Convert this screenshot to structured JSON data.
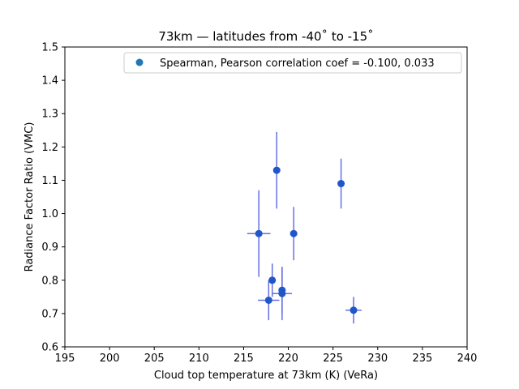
{
  "chart_data": {
    "type": "scatter",
    "title": "73km — latitudes from -40˚ to -15˚",
    "xlabel": "Cloud top temperature at 73km (K) (VeRa)",
    "ylabel": "Radiance Factor Ratio (VMC)",
    "xlim": [
      195,
      240
    ],
    "ylim": [
      0.6,
      1.5
    ],
    "xticks": [
      "195",
      "200",
      "205",
      "210",
      "215",
      "220",
      "225",
      "230",
      "235",
      "240"
    ],
    "yticks": [
      "0.6",
      "0.7",
      "0.8",
      "0.9",
      "1.0",
      "1.1",
      "1.2",
      "1.3",
      "1.4",
      "1.5"
    ],
    "grid": false,
    "legend": {
      "position": "top-right",
      "label": "Spearman, Pearson correlation coef = -0.100,  0.033"
    },
    "colors": {
      "marker": "#1f57c8",
      "errorbar": "#6670e0",
      "legend_marker": "#1f77b4"
    },
    "points": [
      {
        "x": 216.7,
        "y": 0.94,
        "xerr": 1.3,
        "yerr": 0.13
      },
      {
        "x": 218.7,
        "y": 1.13,
        "xerr": 0.0,
        "yerr": 0.115
      },
      {
        "x": 220.6,
        "y": 0.94,
        "xerr": 0.4,
        "yerr": 0.08
      },
      {
        "x": 225.9,
        "y": 1.09,
        "xerr": 0.0,
        "yerr": 0.075
      },
      {
        "x": 218.2,
        "y": 0.8,
        "xerr": 0.4,
        "yerr": 0.05
      },
      {
        "x": 219.3,
        "y": 0.77,
        "xerr": 0.0,
        "yerr": 0.07
      },
      {
        "x": 219.3,
        "y": 0.76,
        "xerr": 1.1,
        "yerr": 0.08
      },
      {
        "x": 217.8,
        "y": 0.74,
        "xerr": 1.2,
        "yerr": 0.06
      },
      {
        "x": 227.3,
        "y": 0.71,
        "xerr": 0.9,
        "yerr": 0.04
      }
    ]
  }
}
